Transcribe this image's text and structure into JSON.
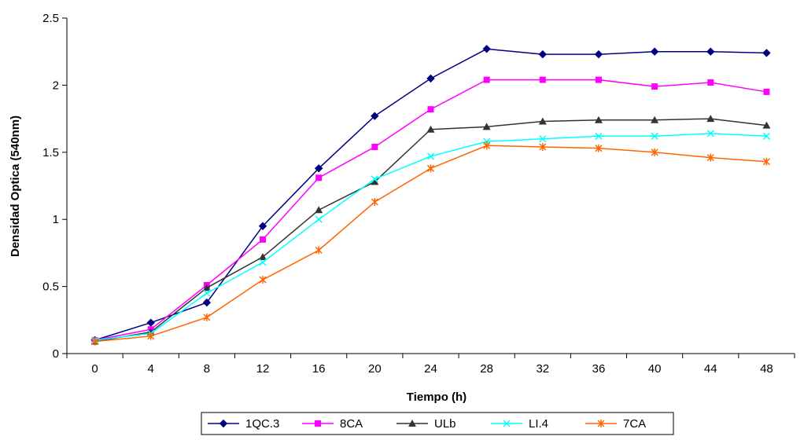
{
  "chart_data": {
    "type": "line",
    "title": "",
    "xlabel": "Tiempo (h)",
    "ylabel": "Densidad Optica (540nm)",
    "categories": [
      "0",
      "4",
      "8",
      "12",
      "16",
      "20",
      "24",
      "28",
      "32",
      "36",
      "40",
      "44",
      "48"
    ],
    "ylim": [
      0,
      2.5
    ],
    "yticks": [
      "0",
      "0.5",
      "1",
      "1.5",
      "2",
      "2.5"
    ],
    "grid": false,
    "legend_position": "bottom",
    "series": [
      {
        "name": "1QC.3",
        "color": "#00007f",
        "marker": "diamond",
        "values": [
          0.1,
          0.23,
          0.38,
          0.95,
          1.38,
          1.77,
          2.05,
          2.27,
          2.23,
          2.23,
          2.25,
          2.25,
          2.24
        ]
      },
      {
        "name": "8CA",
        "color": "#ff00ff",
        "marker": "square",
        "values": [
          0.1,
          0.18,
          0.51,
          0.85,
          1.31,
          1.54,
          1.82,
          2.04,
          2.04,
          2.04,
          1.99,
          2.02,
          1.95
        ]
      },
      {
        "name": "ULb",
        "color": "#333333",
        "marker": "triangle",
        "values": [
          0.09,
          0.16,
          0.49,
          0.72,
          1.07,
          1.28,
          1.67,
          1.69,
          1.73,
          1.74,
          1.74,
          1.75,
          1.7
        ]
      },
      {
        "name": "LI.4",
        "color": "#00ffff",
        "marker": "x",
        "values": [
          0.1,
          0.15,
          0.45,
          0.68,
          1.0,
          1.3,
          1.47,
          1.58,
          1.6,
          1.62,
          1.62,
          1.64,
          1.62
        ]
      },
      {
        "name": "7CA",
        "color": "#ff6600",
        "marker": "star",
        "values": [
          0.09,
          0.13,
          0.27,
          0.55,
          0.77,
          1.13,
          1.38,
          1.55,
          1.54,
          1.53,
          1.5,
          1.46,
          1.43
        ]
      }
    ]
  }
}
